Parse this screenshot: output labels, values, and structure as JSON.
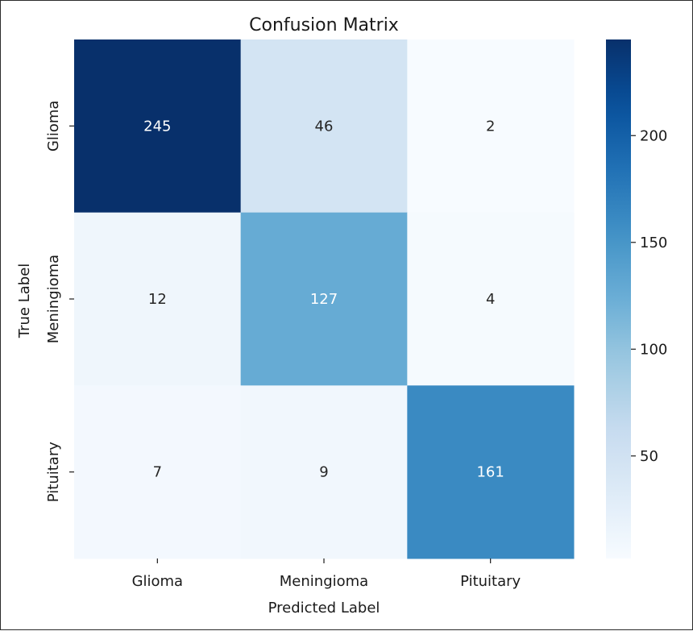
{
  "chart_data": {
    "type": "heatmap",
    "title": "Confusion Matrix",
    "xlabel": "Predicted Label",
    "ylabel": "True Label",
    "x_categories": [
      "Glioma",
      "Meningioma",
      "Pituitary"
    ],
    "y_categories": [
      "Glioma",
      "Meningioma",
      "Pituitary"
    ],
    "matrix": [
      [
        245,
        46,
        2
      ],
      [
        12,
        127,
        4
      ],
      [
        7,
        9,
        161
      ]
    ],
    "colormap": "Blues",
    "colorbar": {
      "ticks": [
        50,
        100,
        150,
        200
      ],
      "tick_labels": [
        "50",
        "100",
        "150",
        "200"
      ],
      "range": [
        2,
        245
      ]
    },
    "colors": {
      "low": "#f7fbff",
      "high": "#08306b",
      "text_dark": "#262626",
      "text_light": "#ffffff"
    }
  }
}
